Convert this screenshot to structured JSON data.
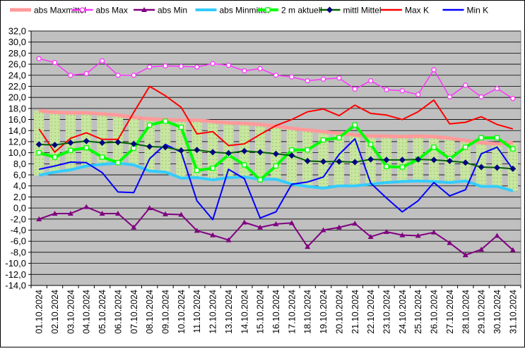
{
  "chart_data": {
    "type": "line",
    "title": "",
    "xlabel": "",
    "ylabel": "",
    "ylim": [
      -14,
      32
    ],
    "y_ticks": [
      "32,0",
      "30,0",
      "28,0",
      "26,0",
      "24,0",
      "22,0",
      "20,0",
      "18,0",
      "16,0",
      "14,0",
      "12,0",
      "10,0",
      "8,0",
      "6,0",
      "4,0",
      "2,0",
      "0,0",
      "-2,0",
      "-4,0",
      "-6,0",
      "-8,0",
      "-10,0",
      "-12,0",
      "-14,0"
    ],
    "grid": true,
    "plot_background": "#c0c0c0",
    "legend_position": "top",
    "categories": [
      "01.10.2024",
      "02.10.2024",
      "03.10.2024",
      "04.10.2024",
      "05.10.2024",
      "06.10.2024",
      "07.10.2024",
      "08.10.2024",
      "09.10.2024",
      "10.10.2024",
      "11.10.2024",
      "12.10.2024",
      "13.10.2024",
      "14.10.2024",
      "15.10.2024",
      "16.10.2024",
      "17.10.2024",
      "18.10.2024",
      "19.10.2024",
      "20.10.2024",
      "21.10.2024",
      "22.10.2024",
      "23.10.2024",
      "24.10.2024",
      "25.10.2024",
      "26.10.2024",
      "27.10.2024",
      "28.10.2024",
      "29.10.2024",
      "30.10.2024",
      "31.10.2024"
    ],
    "band": {
      "upper": "abs Maxmittel",
      "lower": "abs Minmittel",
      "fill": "#c8e6a0"
    },
    "series": [
      {
        "name": "abs Maxmittel",
        "color": "#ff9a9a",
        "width": 5,
        "marker": "none",
        "values": [
          17.6,
          17.3,
          17.2,
          17.2,
          17.0,
          16.8,
          16.4,
          16.1,
          16.0,
          15.9,
          15.9,
          15.6,
          15.4,
          15.3,
          15.1,
          14.8,
          14.4,
          14.1,
          13.8,
          13.5,
          13.2,
          13.0,
          13.0,
          12.9,
          13.0,
          12.9,
          12.6,
          12.2,
          11.8,
          11.6,
          11.8
        ]
      },
      {
        "name": "abs Max",
        "color": "#ff33ff",
        "width": 1.5,
        "marker": "circle",
        "values": [
          27.0,
          26.3,
          24.0,
          24.3,
          26.6,
          24.0,
          24.0,
          25.5,
          25.7,
          25.6,
          25.5,
          26.1,
          25.8,
          24.8,
          25.2,
          24.0,
          23.7,
          23.0,
          23.3,
          23.5,
          21.5,
          23.0,
          21.4,
          21.2,
          20.5,
          25.0,
          20.1,
          22.2,
          20.1,
          21.6,
          19.8
        ]
      },
      {
        "name": "abs Min",
        "color": "#800080",
        "width": 2,
        "marker": "triangle",
        "values": [
          -2.0,
          -1.0,
          -1.0,
          0.2,
          -1.0,
          -1.0,
          -3.5,
          0.0,
          -1.1,
          -1.2,
          -4.1,
          -4.9,
          -5.8,
          -2.6,
          -3.5,
          -2.9,
          -2.7,
          -7.0,
          -4.0,
          -3.5,
          -2.8,
          -5.2,
          -4.3,
          -4.9,
          -5.0,
          -4.4,
          -6.3,
          -8.5,
          -7.5,
          -5.0,
          -7.6
        ]
      },
      {
        "name": "abs Minmittel",
        "color": "#33ccff",
        "width": 4,
        "marker": "none",
        "values": [
          5.9,
          6.5,
          6.9,
          7.6,
          7.9,
          8.1,
          7.8,
          6.7,
          6.5,
          5.4,
          5.5,
          5.1,
          5.5,
          5.6,
          5.2,
          5.2,
          4.3,
          3.9,
          3.6,
          4.0,
          4.0,
          4.3,
          4.6,
          4.8,
          4.9,
          4.8,
          4.6,
          4.9,
          3.9,
          3.9,
          3.1
        ]
      },
      {
        "name": "2 m aktuell",
        "color": "#00ff00",
        "width": 4,
        "marker": "square",
        "values": [
          10.0,
          9.2,
          10.4,
          10.9,
          9.2,
          8.2,
          10.8,
          15.0,
          15.7,
          14.6,
          6.8,
          7.2,
          9.6,
          7.8,
          5.1,
          7.6,
          10.5,
          10.5,
          12.3,
          12.7,
          15.0,
          11.5,
          7.5,
          7.4,
          8.8,
          11.0,
          8.9,
          11.0,
          12.7,
          12.7,
          10.7
        ]
      },
      {
        "name": "mittl Mittel",
        "color": "#006600",
        "width": 2,
        "marker": "diamond",
        "values": [
          11.5,
          11.4,
          11.8,
          12.1,
          11.8,
          11.9,
          11.6,
          11.1,
          11.0,
          10.4,
          10.5,
          10.1,
          9.9,
          10.3,
          10.1,
          9.8,
          9.5,
          8.5,
          8.4,
          8.4,
          8.3,
          8.8,
          8.7,
          8.7,
          8.8,
          8.7,
          8.5,
          8.2,
          7.4,
          7.3,
          7.1
        ]
      },
      {
        "name": "Max K",
        "color": "#ff0000",
        "width": 2,
        "marker": "none",
        "values": [
          14.3,
          10.1,
          12.6,
          13.6,
          12.4,
          12.4,
          17.3,
          22.0,
          20.3,
          18.2,
          13.4,
          13.8,
          11.3,
          11.6,
          13.3,
          14.9,
          16.0,
          17.4,
          17.9,
          16.7,
          18.6,
          17.1,
          16.8,
          16.0,
          17.4,
          19.5,
          15.2,
          15.5,
          16.5,
          15.1,
          14.3
        ]
      },
      {
        "name": "Min K",
        "color": "#0000ff",
        "width": 2,
        "marker": "none",
        "values": [
          7.0,
          7.6,
          8.3,
          8.2,
          6.4,
          2.9,
          2.8,
          8.9,
          11.5,
          10.1,
          1.3,
          -2.1,
          7.0,
          5.3,
          -1.8,
          -0.7,
          4.3,
          4.7,
          5.6,
          9.7,
          12.5,
          4.5,
          1.8,
          -0.7,
          1.3,
          4.6,
          2.2,
          3.3,
          9.8,
          11.0,
          7.0
        ]
      }
    ]
  }
}
